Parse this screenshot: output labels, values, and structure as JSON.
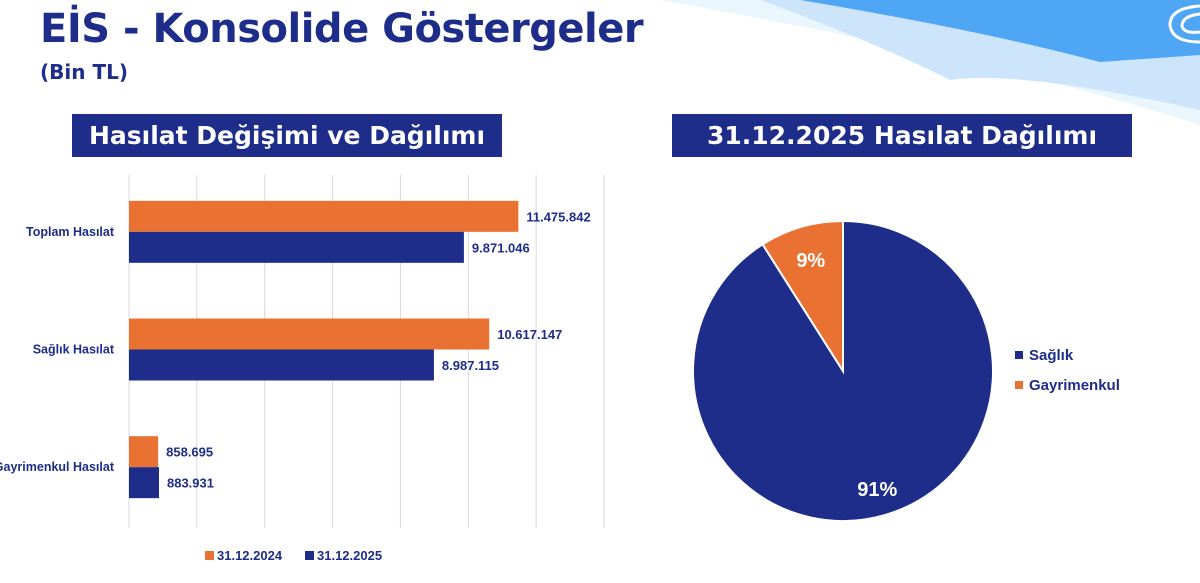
{
  "header": {
    "title": "EİS - Konsolide Göstergeler",
    "subtitle": "(Bin TL)"
  },
  "colors": {
    "navy": "#1e2d8a",
    "orange": "#e97232",
    "decor_blue": "#4fa6f5"
  },
  "logo_icon": "company-logo-swirl",
  "chart_data": [
    {
      "type": "bar",
      "orientation": "horizontal",
      "title": "Hasılat Değişimi ve Dağılımı",
      "categories": [
        "Toplam Hasılat",
        "Sağlık Hasılat",
        "Gayrimenkul Hasılat"
      ],
      "series": [
        {
          "name": "31.12.2024",
          "color": "#e97232",
          "values": [
            11475842,
            10617147,
            858695
          ],
          "labels": [
            "11.475.842",
            "10.617.147",
            "858.695"
          ]
        },
        {
          "name": "31.12.2025",
          "color": "#1e2d8a",
          "values": [
            9871046,
            8987115,
            883931
          ],
          "labels": [
            "9.871.046",
            "8.987.115",
            "883.931"
          ]
        }
      ],
      "xlim": [
        0,
        14000000
      ],
      "grid": true,
      "legend": "bottom"
    },
    {
      "type": "pie",
      "title": "31.12.2025 Hasılat Dağılımı",
      "slices": [
        {
          "name": "Sağlık",
          "value": 91,
          "label": "91%",
          "color": "#1e2d8a"
        },
        {
          "name": "Gayrimenkul",
          "value": 9,
          "label": "9%",
          "color": "#e97232"
        }
      ],
      "legend": "right"
    }
  ]
}
